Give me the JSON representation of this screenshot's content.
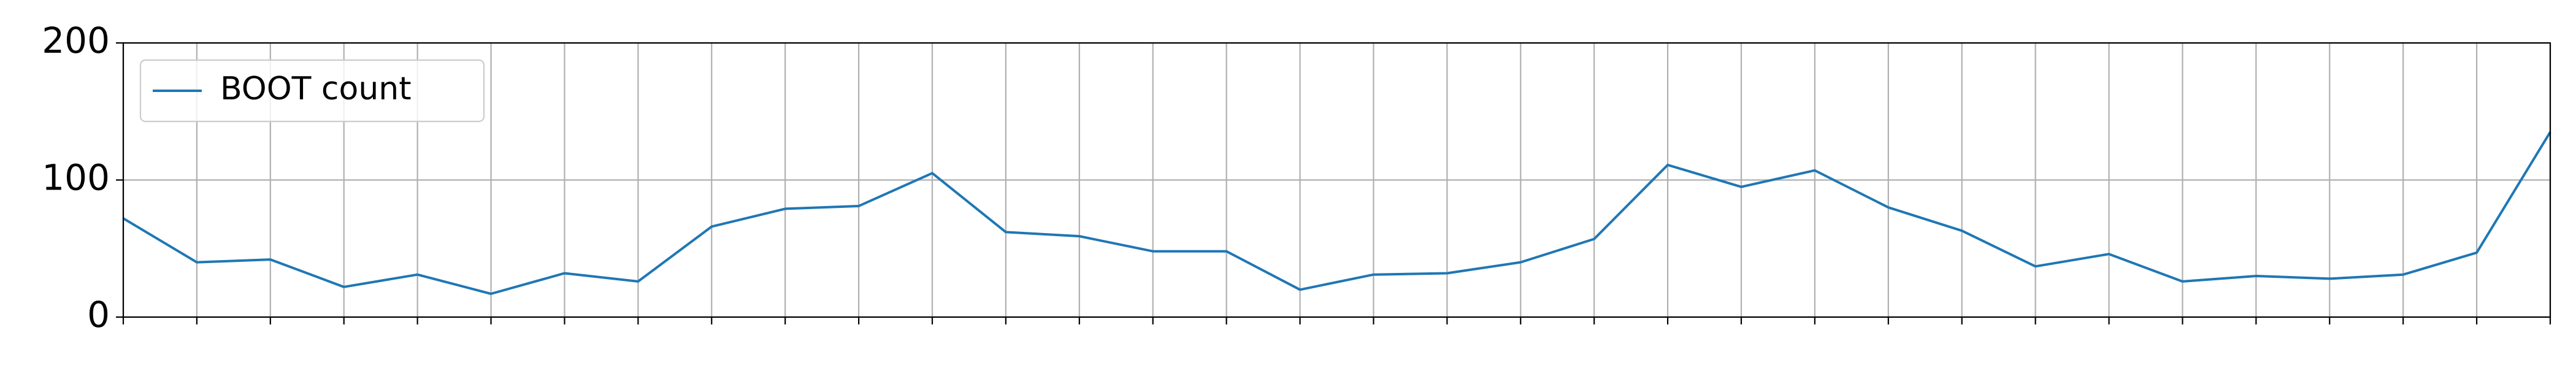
{
  "chart_data": {
    "type": "line",
    "x": [
      0,
      1,
      2,
      3,
      4,
      5,
      6,
      7,
      8,
      9,
      10,
      11,
      12,
      13,
      14,
      15,
      16,
      17,
      18,
      19,
      20,
      21,
      22,
      23,
      24,
      25,
      26,
      27,
      28,
      29,
      30,
      31,
      32,
      33
    ],
    "series": [
      {
        "name": "BOOT count",
        "color": "#1f77b4",
        "values": [
          72,
          40,
          42,
          22,
          31,
          17,
          32,
          26,
          66,
          79,
          81,
          105,
          62,
          59,
          48,
          48,
          20,
          31,
          32,
          40,
          57,
          111,
          95,
          107,
          80,
          63,
          37,
          46,
          26,
          30,
          28,
          31,
          47,
          135
        ]
      }
    ],
    "xlim": [
      0,
      33
    ],
    "xticks": [
      0,
      1,
      2,
      3,
      4,
      5,
      6,
      7,
      8,
      9,
      10,
      11,
      12,
      13,
      14,
      15,
      16,
      17,
      18,
      19,
      20,
      21,
      22,
      23,
      24,
      25,
      26,
      27,
      28,
      29,
      30,
      31,
      32,
      33
    ],
    "ylim": [
      0,
      200
    ],
    "yticks": [
      0,
      100,
      200
    ],
    "grid": true,
    "legend": "upper-left"
  }
}
